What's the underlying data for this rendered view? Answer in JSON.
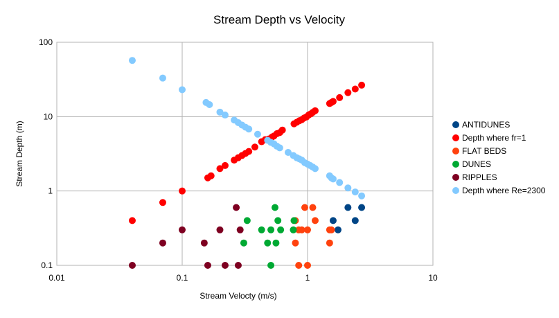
{
  "chart_data": {
    "type": "scatter",
    "title": "Stream Depth vs Velocity",
    "xlabel": "Stream Velocty (m/s)",
    "ylabel": "Stream Depth (m)",
    "xscale": "log",
    "yscale": "log",
    "xlim": [
      0.01,
      10
    ],
    "ylim": [
      0.1,
      100
    ],
    "x_ticks": [
      0.01,
      0.1,
      1,
      10
    ],
    "x_tick_labels": [
      "0.01",
      "0.1",
      "1",
      "10"
    ],
    "y_ticks": [
      0.1,
      1,
      10,
      100
    ],
    "y_tick_labels": [
      "0.1",
      "1",
      "10",
      "100"
    ],
    "grid": "major",
    "legend_position": "right",
    "series": [
      {
        "name": "ANTIDUNES",
        "color": "#004586",
        "x": [
          1.6,
          2.1,
          2.7,
          1.75,
          2.4
        ],
        "y": [
          0.4,
          0.6,
          0.6,
          0.3,
          0.4
        ]
      },
      {
        "name": "Depth where fr=1",
        "color": "#ff0000",
        "x": [
          0.04,
          0.07,
          0.1,
          0.16,
          0.17,
          0.2,
          0.22,
          0.26,
          0.28,
          0.3,
          0.32,
          0.34,
          0.38,
          0.43,
          0.46,
          0.49,
          0.52,
          0.54,
          0.57,
          0.6,
          0.63,
          0.78,
          0.82,
          0.86,
          0.9,
          0.94,
          0.98,
          1.02,
          1.06,
          1.1,
          1.15,
          1.5,
          1.55,
          1.6,
          1.8,
          2.1,
          2.4,
          2.7
        ],
        "y": [
          0.4,
          0.7,
          1.0,
          1.5,
          1.6,
          2.0,
          2.2,
          2.6,
          2.8,
          3.0,
          3.2,
          3.4,
          3.9,
          4.6,
          4.9,
          5.0,
          5.3,
          5.5,
          5.9,
          6.1,
          6.6,
          8.0,
          8.4,
          8.8,
          9.1,
          9.6,
          9.9,
          10.5,
          10.9,
          11.4,
          12.0,
          15.0,
          15.5,
          16.0,
          18.0,
          21.0,
          23.5,
          26.5
        ]
      },
      {
        "name": "FLAT BEDS",
        "color": "#ff420e",
        "x": [
          0.95,
          1.1,
          0.8,
          0.85,
          0.9,
          1.0,
          1.15,
          0.8,
          1.5,
          1.55,
          1.5,
          0.85,
          1.0
        ],
        "y": [
          0.6,
          0.6,
          0.4,
          0.3,
          0.3,
          0.3,
          0.4,
          0.2,
          0.3,
          0.3,
          0.2,
          0.1,
          0.1
        ]
      },
      {
        "name": "DUNES",
        "color": "#00a933",
        "x": [
          0.55,
          0.33,
          0.58,
          0.78,
          0.43,
          0.51,
          0.61,
          0.31,
          0.48,
          0.56,
          0.77,
          0.51
        ],
        "y": [
          0.6,
          0.4,
          0.4,
          0.4,
          0.3,
          0.3,
          0.3,
          0.2,
          0.2,
          0.2,
          0.3,
          0.1
        ]
      },
      {
        "name": "RIPPLES",
        "color": "#7e0021",
        "x": [
          0.27,
          0.1,
          0.2,
          0.29,
          0.07,
          0.15,
          0.04,
          0.16,
          0.22,
          0.28
        ],
        "y": [
          0.6,
          0.3,
          0.3,
          0.3,
          0.2,
          0.2,
          0.1,
          0.1,
          0.1,
          0.1
        ]
      },
      {
        "name": "Depth where Re=2300",
        "color": "#83caff",
        "x": [
          0.04,
          0.07,
          0.1,
          0.155,
          0.165,
          0.2,
          0.22,
          0.26,
          0.28,
          0.3,
          0.32,
          0.34,
          0.4,
          0.48,
          0.51,
          0.54,
          0.57,
          0.6,
          0.7,
          0.77,
          0.82,
          0.86,
          0.9,
          0.95,
          1.0,
          1.05,
          1.1,
          1.15,
          1.5,
          1.55,
          1.6,
          1.8,
          2.1,
          2.4,
          2.7
        ],
        "y": [
          57,
          33,
          23,
          15.5,
          14.5,
          11.5,
          10.5,
          9,
          8.3,
          7.7,
          7.2,
          6.8,
          5.8,
          4.8,
          4.5,
          4.3,
          4.0,
          3.8,
          3.3,
          3.0,
          2.8,
          2.7,
          2.6,
          2.4,
          2.3,
          2.2,
          2.1,
          2.0,
          1.6,
          1.5,
          1.45,
          1.3,
          1.1,
          0.97,
          0.86
        ]
      }
    ]
  }
}
